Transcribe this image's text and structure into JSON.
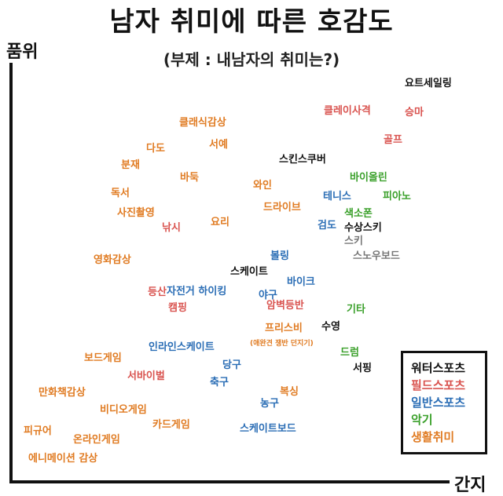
{
  "title": "남자 취미에 따른 호감도",
  "subtitle": "(부제 : 내남자의 취미는?)",
  "axes": {
    "y_label": "품위",
    "x_label": "간지"
  },
  "colors": {
    "black": "#111111",
    "red": "#d9534f",
    "blue": "#2a6db5",
    "green": "#3aa02a",
    "orange": "#e07b22",
    "gray": "#777777"
  },
  "legend": [
    {
      "label": "워터스포츠",
      "color": "black"
    },
    {
      "label": "필드스포츠",
      "color": "red"
    },
    {
      "label": "일반스포츠",
      "color": "blue"
    },
    {
      "label": "악기",
      "color": "green"
    },
    {
      "label": "생활취미",
      "color": "orange"
    }
  ],
  "hobbies": [
    {
      "label": "요트세일링",
      "color": "black"
    },
    {
      "label": "클레이사격",
      "color": "red"
    },
    {
      "label": "승마",
      "color": "red"
    },
    {
      "label": "클래식감상",
      "color": "orange"
    },
    {
      "label": "다도",
      "color": "orange"
    },
    {
      "label": "서예",
      "color": "orange"
    },
    {
      "label": "골프",
      "color": "red"
    },
    {
      "label": "분재",
      "color": "orange"
    },
    {
      "label": "스킨스쿠버",
      "color": "black"
    },
    {
      "label": "바둑",
      "color": "orange"
    },
    {
      "label": "바이올린",
      "color": "green"
    },
    {
      "label": "와인",
      "color": "orange"
    },
    {
      "label": "독서",
      "color": "orange"
    },
    {
      "label": "테니스",
      "color": "blue"
    },
    {
      "label": "피아노",
      "color": "green"
    },
    {
      "label": "사진촬영",
      "color": "orange"
    },
    {
      "label": "드라이브",
      "color": "orange"
    },
    {
      "label": "색소폰",
      "color": "green"
    },
    {
      "label": "낚시",
      "color": "red"
    },
    {
      "label": "요리",
      "color": "orange"
    },
    {
      "label": "검도",
      "color": "blue"
    },
    {
      "label": "수상스키",
      "color": "black"
    },
    {
      "label": "스키",
      "color": "gray"
    },
    {
      "label": "볼링",
      "color": "blue"
    },
    {
      "label": "스노우보드",
      "color": "gray"
    },
    {
      "label": "영화감상",
      "color": "orange"
    },
    {
      "label": "스케이트",
      "color": "black"
    },
    {
      "label": "바이크",
      "color": "blue"
    },
    {
      "label": "등산",
      "color": "red"
    },
    {
      "label": "자전거 하이킹",
      "color": "blue"
    },
    {
      "label": "야구",
      "color": "blue"
    },
    {
      "label": "캠핑",
      "color": "red"
    },
    {
      "label": "암벽등반",
      "color": "red"
    },
    {
      "label": "기타",
      "color": "green"
    },
    {
      "label": "프리스비",
      "color": "orange"
    },
    {
      "label": "수영",
      "color": "black"
    },
    {
      "label": "인라인스케이트",
      "color": "blue"
    },
    {
      "label": "보드게임",
      "color": "orange"
    },
    {
      "label": "드럼",
      "color": "green"
    },
    {
      "label": "당구",
      "color": "blue"
    },
    {
      "label": "서핑",
      "color": "black"
    },
    {
      "label": "서바이벌",
      "color": "red"
    },
    {
      "label": "축구",
      "color": "blue"
    },
    {
      "label": "복싱",
      "color": "orange"
    },
    {
      "label": "만화책감상",
      "color": "orange"
    },
    {
      "label": "농구",
      "color": "blue"
    },
    {
      "label": "비디오게임",
      "color": "orange"
    },
    {
      "label": "카드게임",
      "color": "orange"
    },
    {
      "label": "스케이트보드",
      "color": "blue"
    },
    {
      "label": "피규어",
      "color": "orange"
    },
    {
      "label": "온라인게임",
      "color": "orange"
    },
    {
      "label": "에니메이션 감상",
      "color": "orange"
    }
  ],
  "frisbee_note": "(애완견 쟁반 던지기)"
}
